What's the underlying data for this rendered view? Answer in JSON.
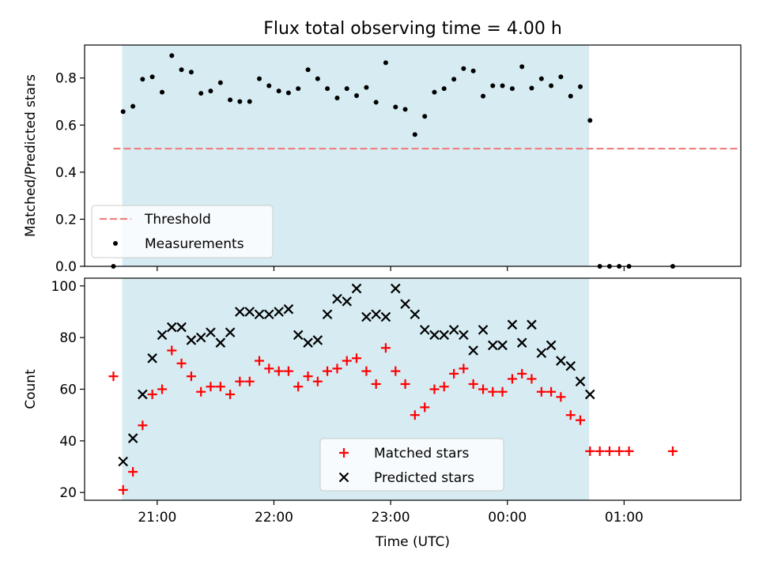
{
  "chart_data": {
    "title": "Flux total observing time = 4.00 h",
    "xlabel": "Time (UTC)",
    "x_ticks": [
      "21:00",
      "22:00",
      "23:00",
      "00:00",
      "01:00"
    ],
    "x_tick_hours": [
      21,
      22,
      23,
      24,
      25
    ],
    "x_range_hours": [
      20.378,
      26.0
    ],
    "observing_window_hours": [
      20.7,
      24.7
    ],
    "colors": {
      "window": "#add8e6",
      "threshold": "#f08080",
      "matched": "#ff0000",
      "predicted": "#000000",
      "measurement": "#000000"
    },
    "charts": [
      {
        "type": "scatter",
        "ylabel": "Matched/Predicted stars",
        "ylim": [
          0,
          0.94
        ],
        "y_ticks": [
          0.0,
          0.2,
          0.4,
          0.6,
          0.8
        ],
        "y_tick_labels": [
          "0.0",
          "0.2",
          "0.4",
          "0.6",
          "0.8"
        ],
        "threshold": {
          "name": "Threshold",
          "value": 0.5,
          "x": [
            20.625,
            26.0
          ]
        },
        "legend": {
          "position": "lower-left",
          "entries": [
            "Threshold",
            "Measurements"
          ]
        },
        "series": [
          {
            "name": "Measurements",
            "points": [
              [
                20.625,
                0.0
              ],
              [
                20.708,
                0.657
              ],
              [
                20.792,
                0.68
              ],
              [
                20.875,
                0.795
              ],
              [
                20.958,
                0.805
              ],
              [
                21.042,
                0.74
              ],
              [
                21.125,
                0.895
              ],
              [
                21.208,
                0.835
              ],
              [
                21.292,
                0.825
              ],
              [
                21.375,
                0.735
              ],
              [
                21.458,
                0.745
              ],
              [
                21.542,
                0.78
              ],
              [
                21.625,
                0.707
              ],
              [
                21.708,
                0.7
              ],
              [
                21.792,
                0.7
              ],
              [
                21.875,
                0.797
              ],
              [
                21.958,
                0.767
              ],
              [
                22.042,
                0.745
              ],
              [
                22.125,
                0.737
              ],
              [
                22.208,
                0.755
              ],
              [
                22.292,
                0.835
              ],
              [
                22.375,
                0.797
              ],
              [
                22.458,
                0.755
              ],
              [
                22.542,
                0.715
              ],
              [
                22.625,
                0.755
              ],
              [
                22.708,
                0.725
              ],
              [
                22.792,
                0.76
              ],
              [
                22.875,
                0.697
              ],
              [
                22.958,
                0.865
              ],
              [
                23.042,
                0.677
              ],
              [
                23.125,
                0.667
              ],
              [
                23.208,
                0.56
              ],
              [
                23.292,
                0.637
              ],
              [
                23.375,
                0.74
              ],
              [
                23.458,
                0.755
              ],
              [
                23.542,
                0.795
              ],
              [
                23.625,
                0.84
              ],
              [
                23.708,
                0.83
              ],
              [
                23.792,
                0.723
              ],
              [
                23.875,
                0.767
              ],
              [
                23.958,
                0.767
              ],
              [
                24.042,
                0.755
              ],
              [
                24.125,
                0.848
              ],
              [
                24.208,
                0.757
              ],
              [
                24.292,
                0.797
              ],
              [
                24.375,
                0.767
              ],
              [
                24.458,
                0.805
              ],
              [
                24.542,
                0.723
              ],
              [
                24.625,
                0.763
              ],
              [
                24.708,
                0.62
              ],
              [
                24.792,
                0.0
              ],
              [
                24.875,
                0.0
              ],
              [
                24.958,
                0.0
              ],
              [
                25.042,
                0.0
              ],
              [
                25.417,
                0.0
              ]
            ]
          }
        ]
      },
      {
        "type": "scatter",
        "ylabel": "Count",
        "ylim": [
          17,
          103
        ],
        "y_ticks": [
          20,
          40,
          60,
          80,
          100
        ],
        "y_tick_labels": [
          "20",
          "40",
          "60",
          "80",
          "100"
        ],
        "legend": {
          "position": "lower-center",
          "entries": [
            "Matched stars",
            "Predicted stars"
          ]
        },
        "series": [
          {
            "name": "Matched stars",
            "marker": "plus",
            "points": [
              [
                20.625,
                65
              ],
              [
                20.708,
                21
              ],
              [
                20.792,
                28
              ],
              [
                20.875,
                46
              ],
              [
                20.958,
                58
              ],
              [
                21.042,
                60
              ],
              [
                21.125,
                75
              ],
              [
                21.208,
                70
              ],
              [
                21.292,
                65
              ],
              [
                21.375,
                59
              ],
              [
                21.458,
                61
              ],
              [
                21.542,
                61
              ],
              [
                21.625,
                58
              ],
              [
                21.708,
                63
              ],
              [
                21.792,
                63
              ],
              [
                21.875,
                71
              ],
              [
                21.958,
                68
              ],
              [
                22.042,
                67
              ],
              [
                22.125,
                67
              ],
              [
                22.208,
                61
              ],
              [
                22.292,
                65
              ],
              [
                22.375,
                63
              ],
              [
                22.458,
                67
              ],
              [
                22.542,
                68
              ],
              [
                22.625,
                71
              ],
              [
                22.708,
                72
              ],
              [
                22.792,
                67
              ],
              [
                22.875,
                62
              ],
              [
                22.958,
                76
              ],
              [
                23.042,
                67
              ],
              [
                23.125,
                62
              ],
              [
                23.208,
                50
              ],
              [
                23.292,
                53
              ],
              [
                23.375,
                60
              ],
              [
                23.458,
                61
              ],
              [
                23.542,
                66
              ],
              [
                23.625,
                68
              ],
              [
                23.708,
                62
              ],
              [
                23.792,
                60
              ],
              [
                23.875,
                59
              ],
              [
                23.958,
                59
              ],
              [
                24.042,
                64
              ],
              [
                24.125,
                66
              ],
              [
                24.208,
                64
              ],
              [
                24.292,
                59
              ],
              [
                24.375,
                59
              ],
              [
                24.458,
                57
              ],
              [
                24.542,
                50
              ],
              [
                24.625,
                48
              ],
              [
                24.708,
                36
              ],
              [
                24.792,
                36
              ],
              [
                24.875,
                36
              ],
              [
                24.958,
                36
              ],
              [
                25.042,
                36
              ],
              [
                25.417,
                36
              ]
            ]
          },
          {
            "name": "Predicted stars",
            "marker": "cross",
            "points": [
              [
                20.708,
                32
              ],
              [
                20.792,
                41
              ],
              [
                20.875,
                58
              ],
              [
                20.958,
                72
              ],
              [
                21.042,
                81
              ],
              [
                21.125,
                84
              ],
              [
                21.208,
                84
              ],
              [
                21.292,
                79
              ],
              [
                21.375,
                80
              ],
              [
                21.458,
                82
              ],
              [
                21.542,
                78
              ],
              [
                21.625,
                82
              ],
              [
                21.708,
                90
              ],
              [
                21.792,
                90
              ],
              [
                21.875,
                89
              ],
              [
                21.958,
                89
              ],
              [
                22.042,
                90
              ],
              [
                22.125,
                91
              ],
              [
                22.208,
                81
              ],
              [
                22.292,
                78
              ],
              [
                22.375,
                79
              ],
              [
                22.458,
                89
              ],
              [
                22.542,
                95
              ],
              [
                22.625,
                94
              ],
              [
                22.708,
                99
              ],
              [
                22.792,
                88
              ],
              [
                22.875,
                89
              ],
              [
                22.958,
                88
              ],
              [
                23.042,
                99
              ],
              [
                23.125,
                93
              ],
              [
                23.208,
                89
              ],
              [
                23.292,
                83
              ],
              [
                23.375,
                81
              ],
              [
                23.458,
                81
              ],
              [
                23.542,
                83
              ],
              [
                23.625,
                81
              ],
              [
                23.708,
                75
              ],
              [
                23.792,
                83
              ],
              [
                23.875,
                77
              ],
              [
                23.958,
                77
              ],
              [
                24.042,
                85
              ],
              [
                24.125,
                78
              ],
              [
                24.208,
                85
              ],
              [
                24.292,
                74
              ],
              [
                24.375,
                77
              ],
              [
                24.458,
                71
              ],
              [
                24.542,
                69
              ],
              [
                24.625,
                63
              ],
              [
                24.708,
                58
              ]
            ]
          }
        ]
      }
    ]
  }
}
